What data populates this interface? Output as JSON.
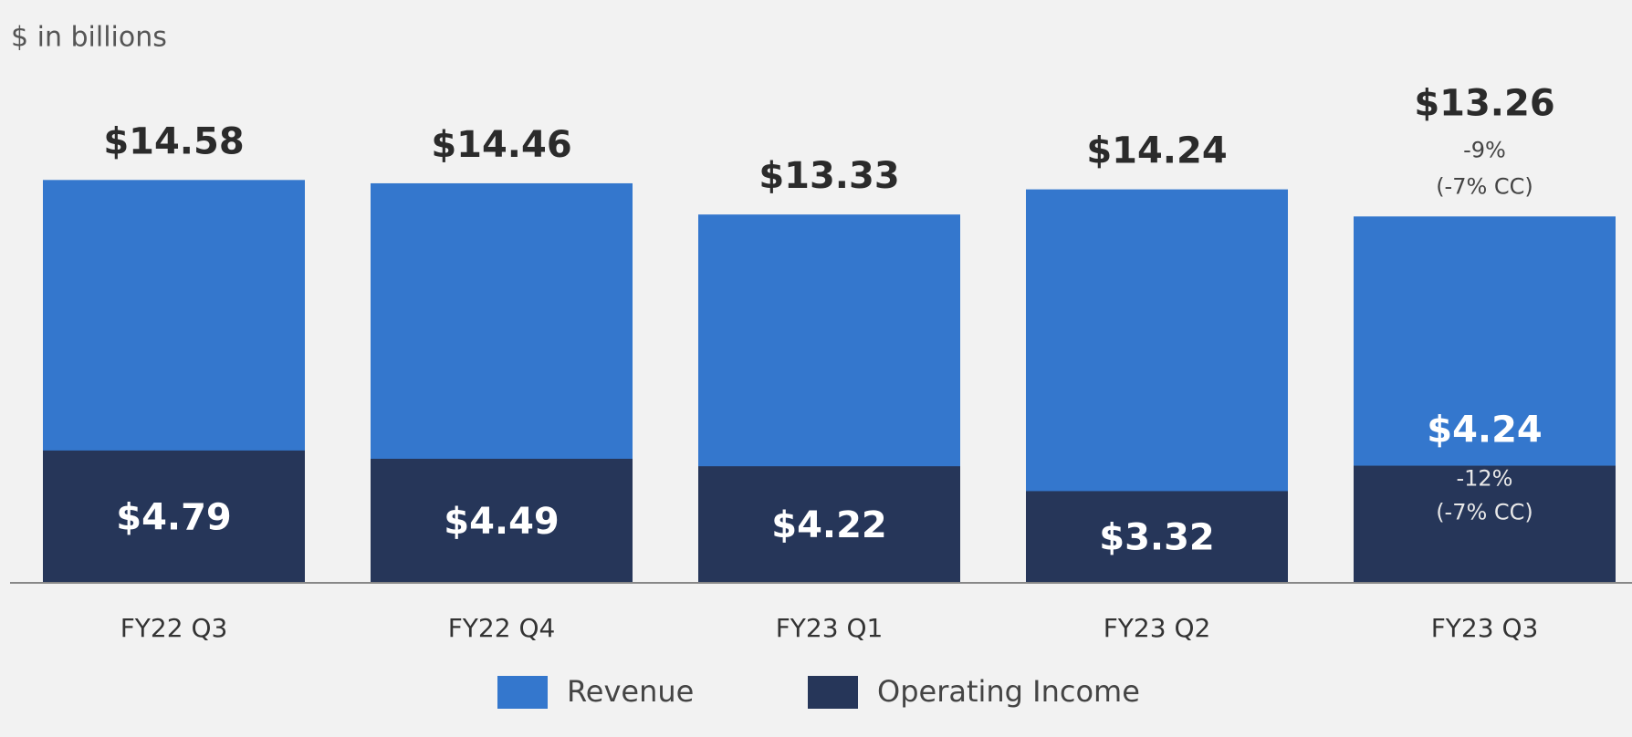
{
  "chart_data": {
    "type": "bar",
    "title": "$ in billions",
    "categories": [
      "FY22 Q3",
      "FY22 Q4",
      "FY23 Q1",
      "FY23 Q2",
      "FY23 Q3"
    ],
    "series": [
      {
        "name": "Revenue",
        "color": "#3477cd",
        "values": [
          14.58,
          14.46,
          13.33,
          14.24,
          13.26
        ],
        "value_labels": [
          "$14.58",
          "$14.46",
          "$13.33",
          "$14.24",
          "$13.26"
        ],
        "annotations": [
          null,
          null,
          null,
          null,
          [
            "-9%",
            "(-7% CC)"
          ]
        ]
      },
      {
        "name": "Operating Income",
        "color": "#263659",
        "values": [
          4.79,
          4.49,
          4.22,
          3.32,
          4.24
        ],
        "value_labels": [
          "$4.79",
          "$4.49",
          "$4.22",
          "$3.32",
          "$4.24"
        ],
        "annotations": [
          null,
          null,
          null,
          null,
          [
            "-12%",
            "(-7% CC)"
          ]
        ]
      }
    ],
    "ylim": [
      0,
      17
    ],
    "overlap": true,
    "legend": "bottom"
  }
}
